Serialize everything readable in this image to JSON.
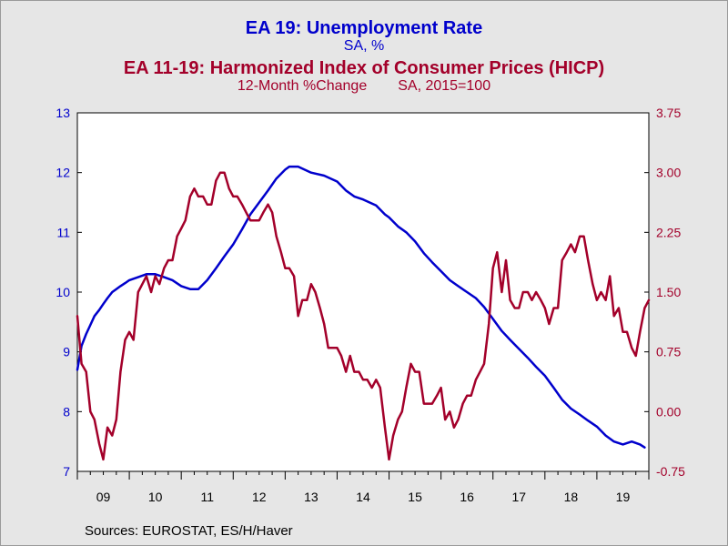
{
  "chart_data": {
    "type": "line",
    "titles": {
      "line1": "EA 19: Unemployment Rate",
      "line2": "SA, %",
      "line3": "EA 11-19: Harmonized Index of Consumer Prices (HICP)",
      "line4_left": "12-Month %Change",
      "line4_right": "SA, 2015=100"
    },
    "x_tick_labels": [
      "09",
      "10",
      "11",
      "12",
      "13",
      "14",
      "15",
      "16",
      "17",
      "18",
      "19"
    ],
    "x_range": [
      2009.0,
      2020.0
    ],
    "y_left": {
      "range": [
        7,
        13
      ],
      "ticks": [
        7,
        8,
        9,
        10,
        11,
        12,
        13
      ],
      "tick_labels": [
        "7",
        "8",
        "9",
        "10",
        "11",
        "12",
        "13"
      ],
      "color": "#0000cc"
    },
    "y_right": {
      "range": [
        -0.75,
        3.75
      ],
      "ticks": [
        -0.75,
        0,
        0.75,
        1.5,
        2.25,
        3.0,
        3.75
      ],
      "tick_labels": [
        "-0.75",
        "0.00",
        "0.75",
        "1.50",
        "2.25",
        "3.00",
        "3.75"
      ],
      "color": "#a3002a"
    },
    "grid": false,
    "legend": "none",
    "colors": {
      "background": "#e6e6e6",
      "plot_bg": "#ffffff",
      "unemployment": "#0000cc",
      "hicp": "#a3002a"
    },
    "series": [
      {
        "axis": "left",
        "color": "#0000cc",
        "points": [
          [
            2009.0,
            8.7
          ],
          [
            2009.08,
            9.1
          ],
          [
            2009.17,
            9.3
          ],
          [
            2009.25,
            9.45
          ],
          [
            2009.33,
            9.6
          ],
          [
            2009.42,
            9.7
          ],
          [
            2009.5,
            9.8
          ],
          [
            2009.58,
            9.9
          ],
          [
            2009.67,
            10.0
          ],
          [
            2009.75,
            10.05
          ],
          [
            2009.83,
            10.1
          ],
          [
            2009.92,
            10.15
          ],
          [
            2010.0,
            10.2
          ],
          [
            2010.17,
            10.25
          ],
          [
            2010.33,
            10.3
          ],
          [
            2010.5,
            10.3
          ],
          [
            2010.67,
            10.25
          ],
          [
            2010.83,
            10.2
          ],
          [
            2011.0,
            10.1
          ],
          [
            2011.17,
            10.05
          ],
          [
            2011.33,
            10.05
          ],
          [
            2011.5,
            10.2
          ],
          [
            2011.67,
            10.4
          ],
          [
            2011.83,
            10.6
          ],
          [
            2012.0,
            10.8
          ],
          [
            2012.17,
            11.05
          ],
          [
            2012.33,
            11.3
          ],
          [
            2012.5,
            11.5
          ],
          [
            2012.67,
            11.7
          ],
          [
            2012.83,
            11.9
          ],
          [
            2013.0,
            12.05
          ],
          [
            2013.08,
            12.1
          ],
          [
            2013.25,
            12.1
          ],
          [
            2013.5,
            12.0
          ],
          [
            2013.75,
            11.95
          ],
          [
            2014.0,
            11.85
          ],
          [
            2014.17,
            11.7
          ],
          [
            2014.33,
            11.6
          ],
          [
            2014.5,
            11.55
          ],
          [
            2014.75,
            11.45
          ],
          [
            2014.92,
            11.3
          ],
          [
            2015.0,
            11.25
          ],
          [
            2015.17,
            11.1
          ],
          [
            2015.33,
            11.0
          ],
          [
            2015.5,
            10.85
          ],
          [
            2015.67,
            10.65
          ],
          [
            2015.83,
            10.5
          ],
          [
            2016.0,
            10.35
          ],
          [
            2016.17,
            10.2
          ],
          [
            2016.33,
            10.1
          ],
          [
            2016.5,
            10.0
          ],
          [
            2016.67,
            9.9
          ],
          [
            2016.83,
            9.75
          ],
          [
            2017.0,
            9.55
          ],
          [
            2017.17,
            9.35
          ],
          [
            2017.33,
            9.2
          ],
          [
            2017.5,
            9.05
          ],
          [
            2017.67,
            8.9
          ],
          [
            2017.83,
            8.75
          ],
          [
            2018.0,
            8.6
          ],
          [
            2018.17,
            8.4
          ],
          [
            2018.33,
            8.2
          ],
          [
            2018.5,
            8.05
          ],
          [
            2018.67,
            7.95
          ],
          [
            2018.83,
            7.85
          ],
          [
            2019.0,
            7.75
          ],
          [
            2019.17,
            7.6
          ],
          [
            2019.33,
            7.5
          ],
          [
            2019.5,
            7.45
          ],
          [
            2019.67,
            7.5
          ],
          [
            2019.83,
            7.45
          ],
          [
            2019.92,
            7.4
          ]
        ]
      },
      {
        "axis": "right",
        "color": "#a3002a",
        "points": [
          [
            2009.0,
            1.2
          ],
          [
            2009.08,
            0.6
          ],
          [
            2009.17,
            0.5
          ],
          [
            2009.25,
            0.0
          ],
          [
            2009.33,
            -0.1
          ],
          [
            2009.42,
            -0.4
          ],
          [
            2009.5,
            -0.6
          ],
          [
            2009.58,
            -0.2
          ],
          [
            2009.67,
            -0.3
          ],
          [
            2009.75,
            -0.1
          ],
          [
            2009.83,
            0.5
          ],
          [
            2009.92,
            0.9
          ],
          [
            2010.0,
            1.0
          ],
          [
            2010.08,
            0.9
          ],
          [
            2010.17,
            1.5
          ],
          [
            2010.25,
            1.6
          ],
          [
            2010.33,
            1.7
          ],
          [
            2010.42,
            1.5
          ],
          [
            2010.5,
            1.7
          ],
          [
            2010.58,
            1.6
          ],
          [
            2010.67,
            1.8
          ],
          [
            2010.75,
            1.9
          ],
          [
            2010.83,
            1.9
          ],
          [
            2010.92,
            2.2
          ],
          [
            2011.0,
            2.3
          ],
          [
            2011.08,
            2.4
          ],
          [
            2011.17,
            2.7
          ],
          [
            2011.25,
            2.8
          ],
          [
            2011.33,
            2.7
          ],
          [
            2011.42,
            2.7
          ],
          [
            2011.5,
            2.6
          ],
          [
            2011.58,
            2.6
          ],
          [
            2011.67,
            2.9
          ],
          [
            2011.75,
            3.0
          ],
          [
            2011.83,
            3.0
          ],
          [
            2011.92,
            2.8
          ],
          [
            2012.0,
            2.7
          ],
          [
            2012.08,
            2.7
          ],
          [
            2012.17,
            2.6
          ],
          [
            2012.25,
            2.5
          ],
          [
            2012.33,
            2.4
          ],
          [
            2012.42,
            2.4
          ],
          [
            2012.5,
            2.4
          ],
          [
            2012.58,
            2.5
          ],
          [
            2012.67,
            2.6
          ],
          [
            2012.75,
            2.5
          ],
          [
            2012.83,
            2.2
          ],
          [
            2012.92,
            2.0
          ],
          [
            2013.0,
            1.8
          ],
          [
            2013.08,
            1.8
          ],
          [
            2013.17,
            1.7
          ],
          [
            2013.25,
            1.2
          ],
          [
            2013.33,
            1.4
          ],
          [
            2013.42,
            1.4
          ],
          [
            2013.5,
            1.6
          ],
          [
            2013.58,
            1.5
          ],
          [
            2013.67,
            1.3
          ],
          [
            2013.75,
            1.1
          ],
          [
            2013.83,
            0.8
          ],
          [
            2013.92,
            0.8
          ],
          [
            2014.0,
            0.8
          ],
          [
            2014.08,
            0.7
          ],
          [
            2014.17,
            0.5
          ],
          [
            2014.25,
            0.7
          ],
          [
            2014.33,
            0.5
          ],
          [
            2014.42,
            0.5
          ],
          [
            2014.5,
            0.4
          ],
          [
            2014.58,
            0.4
          ],
          [
            2014.67,
            0.3
          ],
          [
            2014.75,
            0.4
          ],
          [
            2014.83,
            0.3
          ],
          [
            2014.92,
            -0.2
          ],
          [
            2015.0,
            -0.6
          ],
          [
            2015.08,
            -0.3
          ],
          [
            2015.17,
            -0.1
          ],
          [
            2015.25,
            0.0
          ],
          [
            2015.33,
            0.3
          ],
          [
            2015.42,
            0.6
          ],
          [
            2015.5,
            0.5
          ],
          [
            2015.58,
            0.5
          ],
          [
            2015.67,
            0.1
          ],
          [
            2015.75,
            0.1
          ],
          [
            2015.83,
            0.1
          ],
          [
            2015.92,
            0.2
          ],
          [
            2016.0,
            0.3
          ],
          [
            2016.08,
            -0.1
          ],
          [
            2016.17,
            0.0
          ],
          [
            2016.25,
            -0.2
          ],
          [
            2016.33,
            -0.1
          ],
          [
            2016.42,
            0.1
          ],
          [
            2016.5,
            0.2
          ],
          [
            2016.58,
            0.2
          ],
          [
            2016.67,
            0.4
          ],
          [
            2016.75,
            0.5
          ],
          [
            2016.83,
            0.6
          ],
          [
            2016.92,
            1.1
          ],
          [
            2017.0,
            1.8
          ],
          [
            2017.08,
            2.0
          ],
          [
            2017.17,
            1.5
          ],
          [
            2017.25,
            1.9
          ],
          [
            2017.33,
            1.4
          ],
          [
            2017.42,
            1.3
          ],
          [
            2017.5,
            1.3
          ],
          [
            2017.58,
            1.5
          ],
          [
            2017.67,
            1.5
          ],
          [
            2017.75,
            1.4
          ],
          [
            2017.83,
            1.5
          ],
          [
            2017.92,
            1.4
          ],
          [
            2018.0,
            1.3
          ],
          [
            2018.08,
            1.1
          ],
          [
            2018.17,
            1.3
          ],
          [
            2018.25,
            1.3
          ],
          [
            2018.33,
            1.9
          ],
          [
            2018.42,
            2.0
          ],
          [
            2018.5,
            2.1
          ],
          [
            2018.58,
            2.0
          ],
          [
            2018.67,
            2.2
          ],
          [
            2018.75,
            2.2
          ],
          [
            2018.83,
            1.9
          ],
          [
            2018.92,
            1.6
          ],
          [
            2019.0,
            1.4
          ],
          [
            2019.08,
            1.5
          ],
          [
            2019.17,
            1.4
          ],
          [
            2019.25,
            1.7
          ],
          [
            2019.33,
            1.2
          ],
          [
            2019.42,
            1.3
          ],
          [
            2019.5,
            1.0
          ],
          [
            2019.58,
            1.0
          ],
          [
            2019.67,
            0.8
          ],
          [
            2019.75,
            0.7
          ],
          [
            2019.83,
            1.0
          ],
          [
            2019.92,
            1.3
          ],
          [
            2020.0,
            1.4
          ]
        ]
      }
    ]
  },
  "footer": {
    "source": "Sources:  EUROSTAT, ES/H/Haver"
  }
}
